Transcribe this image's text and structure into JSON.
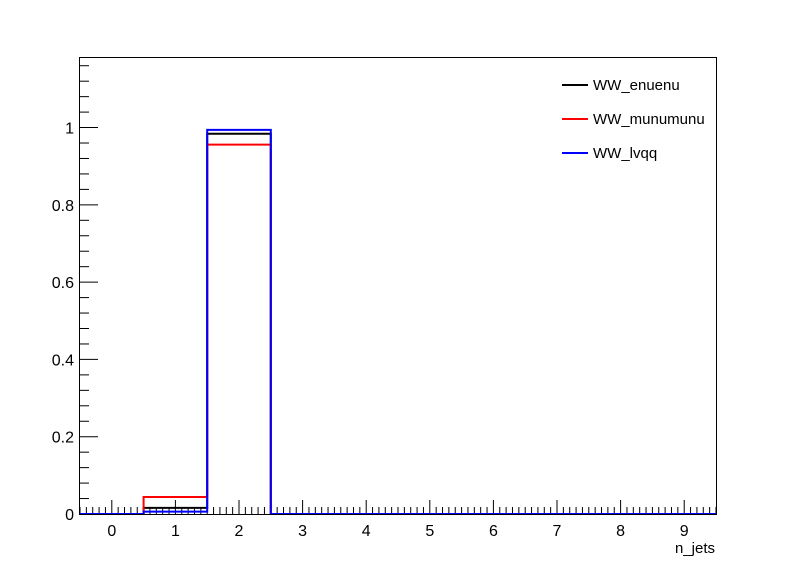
{
  "chart_data": {
    "type": "step",
    "title": "",
    "xlabel": "n_jets",
    "ylabel": "",
    "xlim": [
      -0.5,
      9.5
    ],
    "ylim": [
      0,
      1.18
    ],
    "x_ticks": [
      "0",
      "1",
      "2",
      "3",
      "4",
      "5",
      "6",
      "7",
      "8",
      "9"
    ],
    "y_ticks": [
      "0",
      "0.2",
      "0.4",
      "0.6",
      "0.8",
      "1"
    ],
    "bin_edges": [
      -0.5,
      0.5,
      1.5,
      2.5,
      3.5,
      4.5,
      5.5,
      6.5,
      7.5,
      8.5,
      9.5
    ],
    "legend_position": "top-right",
    "grid": false,
    "series": [
      {
        "name": "WW_enuenu",
        "color": "#000000",
        "values": [
          0,
          0.016,
          0.984,
          0,
          0,
          0,
          0,
          0,
          0,
          0
        ]
      },
      {
        "name": "WW_munumunu",
        "color": "#ff0000",
        "values": [
          0,
          0.044,
          0.956,
          0,
          0,
          0,
          0,
          0,
          0,
          0
        ]
      },
      {
        "name": "WW_lvqq",
        "color": "#0000ff",
        "values": [
          0,
          0.006,
          0.994,
          0,
          0,
          0,
          0,
          0,
          0,
          0
        ]
      }
    ]
  }
}
